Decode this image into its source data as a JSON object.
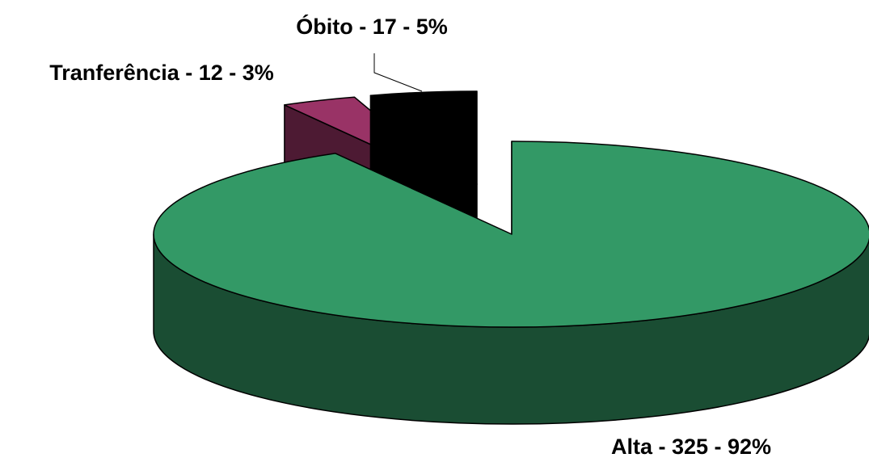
{
  "chart_data": {
    "type": "pie3d",
    "values": [
      325,
      12,
      17
    ],
    "value_labels": [
      "Alta - 325 - 92%",
      "Tranferência - 12 - 3%",
      "Óbito - 17 - 5%"
    ],
    "colors": [
      "#339966",
      "#993366",
      "#000000"
    ]
  }
}
